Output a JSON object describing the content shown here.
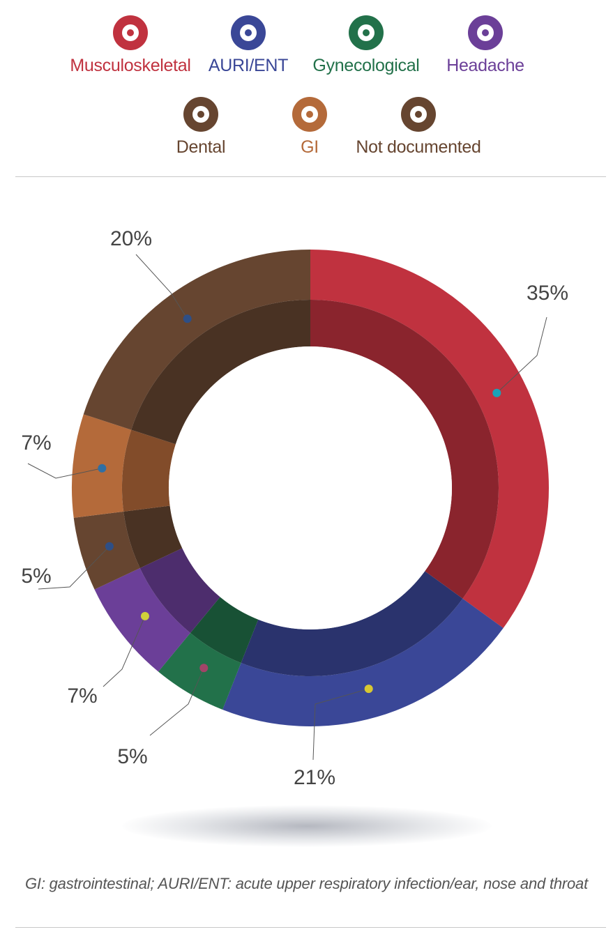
{
  "chart_data": {
    "type": "pie",
    "style": "donut",
    "legend_position": "top",
    "series": [
      {
        "name": "Musculoskeletal",
        "value": 35,
        "label": "35%",
        "color": "#c0323f",
        "dot_color": "#1aa3b8"
      },
      {
        "name": "AURI/ENT",
        "value": 21,
        "label": "21%",
        "color": "#3a4797",
        "dot_color": "#d8c832"
      },
      {
        "name": "Gynecological",
        "value": 5,
        "label": "5%",
        "color": "#22714a",
        "dot_color": "#a24468"
      },
      {
        "name": "Headache",
        "value": 7,
        "label": "7%",
        "color": "#6b3f98",
        "dot_color": "#d0d03a"
      },
      {
        "name": "Dental",
        "value": 5,
        "label": "5%",
        "color": "#664530",
        "dot_color": "#2e4f86"
      },
      {
        "name": "GI",
        "value": 7,
        "label": "7%",
        "color": "#b46a3a",
        "dot_color": "#2f6fa4"
      },
      {
        "name": "Not documented",
        "value": 20,
        "label": "20%",
        "color": "#664530",
        "dot_color": "#2e4f86"
      }
    ]
  },
  "legend": {
    "items": [
      {
        "name": "Musculoskeletal",
        "color": "#c0323f"
      },
      {
        "name": "AURI/ENT",
        "color": "#3a4797"
      },
      {
        "name": "Gynecological",
        "color": "#22714a"
      },
      {
        "name": "Headache",
        "color": "#6b3f98"
      },
      {
        "name": "Dental",
        "color": "#664530"
      },
      {
        "name": "GI",
        "color": "#b46a3a"
      },
      {
        "name": "Not documented",
        "color": "#664530"
      }
    ]
  },
  "footnote": "GI: gastrointestinal; AURI/ENT: acute upper respiratory infection/ear, nose and throat"
}
